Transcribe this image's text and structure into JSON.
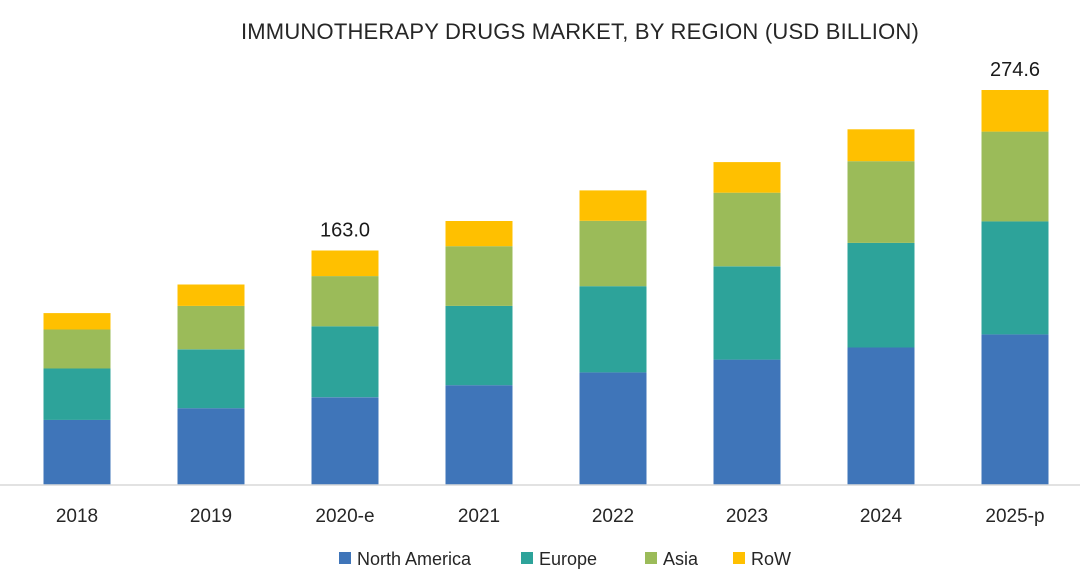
{
  "chart_data": {
    "type": "bar",
    "stacked": true,
    "title": "IMMUNOTHERAPY DRUGS MARKET, BY REGION (USD BILLION)",
    "xlabel": "",
    "ylabel": "",
    "categories": [
      "2018",
      "2019",
      "2020-e",
      "2021",
      "2022",
      "2023",
      "2024",
      "2025-p"
    ],
    "series": [
      {
        "name": "North America",
        "color": "#3F75B9",
        "values": [
          45.3,
          53.4,
          61.0,
          69.4,
          78.3,
          87.2,
          95.6,
          104.7
        ]
      },
      {
        "name": "Europe",
        "color": "#2DA39A",
        "values": [
          35.7,
          40.9,
          49.3,
          55.1,
          59.9,
          64.8,
          72.7,
          78.6
        ]
      },
      {
        "name": "Asia",
        "color": "#9BBB59",
        "values": [
          27.1,
          30.2,
          34.9,
          41.5,
          45.5,
          51.2,
          56.8,
          62.4
        ]
      },
      {
        "name": "RoW",
        "color": "#FFC000",
        "values": [
          11.4,
          14.9,
          17.8,
          17.5,
          21.1,
          21.3,
          22.2,
          28.9
        ]
      }
    ],
    "totals_labeled": {
      "2020-e": "163.0",
      "2025-p": "274.6"
    },
    "ylim": [
      0,
      280
    ],
    "grid": false,
    "legend_position": "bottom"
  }
}
